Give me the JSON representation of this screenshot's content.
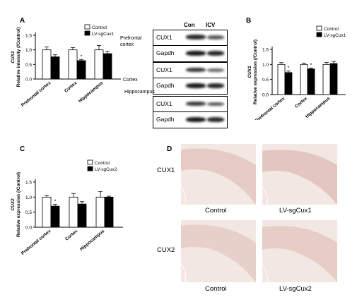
{
  "panels": {
    "A": {
      "letter": "A",
      "chart_data": {
        "type": "bar",
        "categories": [
          "Prefrontal cortex",
          "Cortex",
          "Hippocampus"
        ],
        "series": [
          {
            "name": "Control",
            "values": [
              1.0,
              1.0,
              1.0
            ],
            "errors": [
              0.1,
              0.08,
              0.15
            ]
          },
          {
            "name": "LV-sgCux1",
            "values": [
              0.76,
              0.63,
              0.87
            ],
            "errors": [
              0.07,
              0.04,
              0.08
            ]
          }
        ],
        "significance": [
          "",
          "*",
          ""
        ],
        "ylabel": "CUX1\nRelative intensity (/Control)",
        "yticks": [
          "0.0",
          "0.5",
          "1.0",
          "1.5"
        ],
        "ylim": [
          0,
          1.5
        ],
        "legend_position": "top-right"
      }
    },
    "B": {
      "letter": "B",
      "chart_data": {
        "type": "bar",
        "categories": [
          "Prefrontal cortex",
          "Cortex",
          "Hippocampus"
        ],
        "series": [
          {
            "name": "Control",
            "values": [
              1.0,
              1.0,
              1.0
            ],
            "errors": [
              0.06,
              0.04,
              0.07
            ]
          },
          {
            "name": "LV-sgCux1",
            "values": [
              0.73,
              0.85,
              1.03
            ],
            "errors": [
              0.05,
              0.03,
              0.07
            ]
          }
        ],
        "significance": [
          "*",
          "*",
          ""
        ],
        "ylabel": "CUX1\nRelative expression (/Control)",
        "yticks": [
          "0.0",
          "0.5",
          "1.0",
          "1.5"
        ],
        "ylim": [
          0,
          1.5
        ],
        "legend_position": "top-right"
      }
    },
    "C": {
      "letter": "C",
      "chart_data": {
        "type": "bar",
        "categories": [
          "Prefrontal cortex",
          "Cortex",
          "Hippocampus"
        ],
        "series": [
          {
            "name": "Control",
            "values": [
              1.0,
              1.0,
              1.0
            ],
            "errors": [
              0.05,
              0.12,
              0.18
            ]
          },
          {
            "name": "LV-sgCux2",
            "values": [
              0.7,
              0.77,
              1.0
            ],
            "errors": [
              0.06,
              0.08,
              0.03
            ]
          }
        ],
        "significance": [
          "*",
          "",
          ""
        ],
        "ylabel": "CUX2\nRelative expression (/Control)",
        "yticks": [
          "0.0",
          "0.5",
          "1.0",
          "1.5"
        ],
        "ylim": [
          0,
          1.5
        ],
        "legend_position": "top-right"
      }
    },
    "D": {
      "letter": "D",
      "rows": [
        {
          "label": "CUX1",
          "captions": [
            "Control",
            "LV-sgCux1"
          ]
        },
        {
          "label": "CUX2",
          "captions": [
            "Control",
            "LV-sgCux2"
          ]
        }
      ]
    }
  },
  "blot": {
    "columns": [
      "Con",
      "ICV"
    ],
    "regions": [
      {
        "label": "Prefrontal cortex",
        "rows": [
          "CUX1",
          "Gapdh"
        ]
      },
      {
        "label": "Cortex",
        "rows": [
          "CUX1",
          "Gapdh"
        ]
      },
      {
        "label": "Hippocampus",
        "rows": [
          "CUX1",
          "Gapdh"
        ]
      }
    ]
  },
  "colors": {
    "control_bar": "#ffffff",
    "treatment_bar": "#000000",
    "histology_bg": "#f2e7e3",
    "histology_tissue": "#e6cbc4"
  }
}
